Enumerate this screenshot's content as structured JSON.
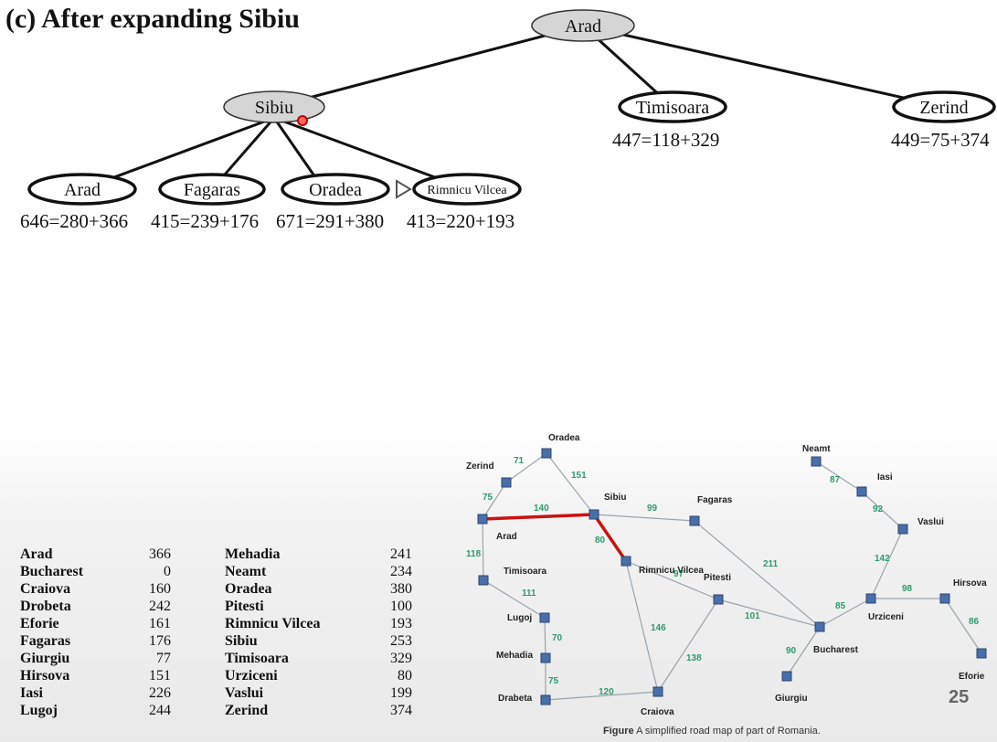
{
  "title": "(c) After expanding Sibiu",
  "tree": {
    "root": {
      "label": "Arad"
    },
    "level1": [
      {
        "label": "Sibiu",
        "fvalue": ""
      },
      {
        "label": "Timisoara",
        "fvalue": "447=118+329"
      },
      {
        "label": "Zerind",
        "fvalue": "449=75+374"
      }
    ],
    "level2": [
      {
        "label": "Arad",
        "fvalue": "646=280+366"
      },
      {
        "label": "Fagaras",
        "fvalue": "415=239+176"
      },
      {
        "label": "Oradea",
        "fvalue": "671=291+380"
      },
      {
        "label": "Rimnicu Vilcea",
        "fvalue": "413=220+193"
      }
    ]
  },
  "heuristic_table": {
    "left": [
      {
        "city": "Arad",
        "value": "366"
      },
      {
        "city": "Bucharest",
        "value": "0"
      },
      {
        "city": "Craiova",
        "value": "160"
      },
      {
        "city": "Drobeta",
        "value": "242"
      },
      {
        "city": "Eforie",
        "value": "161"
      },
      {
        "city": "Fagaras",
        "value": "176"
      },
      {
        "city": "Giurgiu",
        "value": "77"
      },
      {
        "city": "Hirsova",
        "value": "151"
      },
      {
        "city": "Iasi",
        "value": "226"
      },
      {
        "city": "Lugoj",
        "value": "244"
      }
    ],
    "right": [
      {
        "city": "Mehadia",
        "value": "241"
      },
      {
        "city": "Neamt",
        "value": "234"
      },
      {
        "city": "Oradea",
        "value": "380"
      },
      {
        "city": "Pitesti",
        "value": "100"
      },
      {
        "city": "Rimnicu Vilcea",
        "value": "193"
      },
      {
        "city": "Sibiu",
        "value": "253"
      },
      {
        "city": "Timisoara",
        "value": "329"
      },
      {
        "city": "Urziceni",
        "value": "80"
      },
      {
        "city": "Vaslui",
        "value": "199"
      },
      {
        "city": "Zerind",
        "value": "374"
      }
    ]
  },
  "map": {
    "cities": [
      "Oradea",
      "Zerind",
      "Arad",
      "Sibiu",
      "Fagaras",
      "Rimnicu Vilcea",
      "Timisoara",
      "Lugoj",
      "Pitesti",
      "Mehadia",
      "Drabeta",
      "Craiova",
      "Bucharest",
      "Giurgiu",
      "Neamt",
      "Iasi",
      "Vaslui",
      "Urziceni",
      "Hirsova",
      "Eforie"
    ],
    "roads": [
      {
        "from": "Oradea",
        "to": "Zerind",
        "distance": "71"
      },
      {
        "from": "Oradea",
        "to": "Sibiu",
        "distance": "151"
      },
      {
        "from": "Zerind",
        "to": "Arad",
        "distance": "75"
      },
      {
        "from": "Arad",
        "to": "Sibiu",
        "distance": "140",
        "highlighted": true
      },
      {
        "from": "Arad",
        "to": "Timisoara",
        "distance": "118"
      },
      {
        "from": "Sibiu",
        "to": "Fagaras",
        "distance": "99"
      },
      {
        "from": "Sibiu",
        "to": "Rimnicu Vilcea",
        "distance": "80",
        "highlighted": true
      },
      {
        "from": "Fagaras",
        "to": "Bucharest",
        "distance": "211"
      },
      {
        "from": "Rimnicu Vilcea",
        "to": "Pitesti",
        "distance": "97"
      },
      {
        "from": "Rimnicu Vilcea",
        "to": "Craiova",
        "distance": "146"
      },
      {
        "from": "Timisoara",
        "to": "Lugoj",
        "distance": "111"
      },
      {
        "from": "Lugoj",
        "to": "Mehadia",
        "distance": "70"
      },
      {
        "from": "Mehadia",
        "to": "Drabeta",
        "distance": "75"
      },
      {
        "from": "Drabeta",
        "to": "Craiova",
        "distance": "120"
      },
      {
        "from": "Craiova",
        "to": "Pitesti",
        "distance": "138"
      },
      {
        "from": "Pitesti",
        "to": "Bucharest",
        "distance": "101"
      },
      {
        "from": "Bucharest",
        "to": "Giurgiu",
        "distance": "90"
      },
      {
        "from": "Bucharest",
        "to": "Urziceni",
        "distance": "85"
      },
      {
        "from": "Urziceni",
        "to": "Hirsova",
        "distance": "98"
      },
      {
        "from": "Hirsova",
        "to": "Eforie",
        "distance": "86"
      },
      {
        "from": "Urziceni",
        "to": "Vaslui",
        "distance": "142"
      },
      {
        "from": "Vaslui",
        "to": "Iasi",
        "distance": "92"
      },
      {
        "from": "Iasi",
        "to": "Neamt",
        "distance": "87"
      }
    ],
    "caption_bold": "Figure",
    "caption_text": " A simplified road map of part of Romania.",
    "highlight_color": "#cc1111",
    "node_color": "#4a6fa8",
    "distance_color": "#2f9a6e"
  },
  "page_number": "25"
}
